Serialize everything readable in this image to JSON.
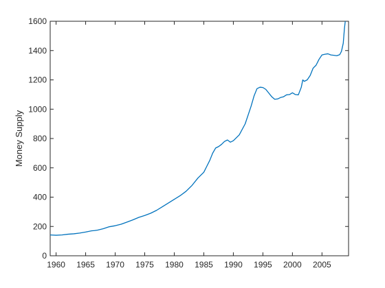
{
  "chart_data": {
    "type": "line",
    "title": "",
    "xlabel": "",
    "ylabel": "Money Supply",
    "xlim": [
      1959,
      2009.5
    ],
    "ylim": [
      0,
      1600
    ],
    "xticks": [
      1960,
      1965,
      1970,
      1975,
      1980,
      1985,
      1990,
      1995,
      2000,
      2005
    ],
    "yticks": [
      0,
      200,
      400,
      600,
      800,
      1000,
      1200,
      1400,
      1600
    ],
    "grid": false,
    "box": true,
    "series": [
      {
        "color": "#0072BD",
        "x": [
          1959.0,
          1960.0,
          1961.0,
          1962.0,
          1963.0,
          1964.0,
          1965.0,
          1966.0,
          1966.5,
          1967.0,
          1968.0,
          1969.0,
          1970.0,
          1971.0,
          1972.0,
          1973.0,
          1974.0,
          1975.0,
          1976.0,
          1977.0,
          1978.0,
          1979.0,
          1980.0,
          1981.0,
          1982.0,
          1983.0,
          1984.0,
          1985.0,
          1985.5,
          1986.0,
          1986.5,
          1987.0,
          1987.5,
          1988.0,
          1988.5,
          1989.0,
          1989.5,
          1990.0,
          1991.0,
          1992.0,
          1992.5,
          1993.0,
          1993.5,
          1994.0,
          1994.5,
          1995.0,
          1995.5,
          1996.0,
          1996.5,
          1997.0,
          1997.5,
          1998.0,
          1998.5,
          1999.0,
          1999.5,
          2000.0,
          2000.5,
          2001.0,
          2001.5,
          2001.75,
          2002.0,
          2002.5,
          2003.0,
          2003.5,
          2004.0,
          2004.5,
          2005.0,
          2005.5,
          2006.0,
          2006.5,
          2007.0,
          2007.5,
          2008.0,
          2008.3,
          2008.6,
          2008.8,
          2009.0
        ],
        "y": [
          142,
          140,
          142,
          147,
          150,
          155,
          162,
          170,
          172,
          175,
          185,
          198,
          205,
          215,
          230,
          245,
          262,
          275,
          290,
          310,
          335,
          360,
          385,
          410,
          440,
          480,
          530,
          570,
          610,
          650,
          700,
          735,
          745,
          760,
          780,
          790,
          775,
          785,
          825,
          900,
          960,
          1020,
          1090,
          1140,
          1150,
          1148,
          1135,
          1110,
          1085,
          1068,
          1070,
          1080,
          1085,
          1098,
          1100,
          1112,
          1100,
          1098,
          1150,
          1200,
          1190,
          1200,
          1230,
          1280,
          1300,
          1340,
          1370,
          1375,
          1378,
          1370,
          1368,
          1365,
          1372,
          1395,
          1450,
          1550,
          1620
        ]
      }
    ]
  }
}
